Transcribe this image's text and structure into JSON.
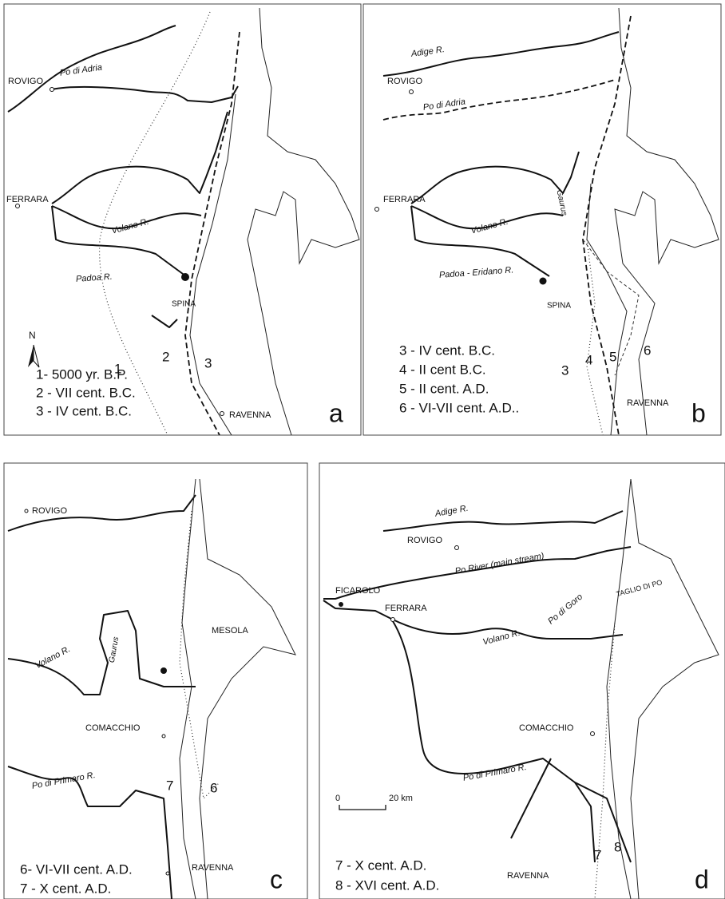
{
  "panels": [
    {
      "letter": "a",
      "labels": [
        "ROVIGO",
        "Po di Adria",
        "FERRARA",
        "Volano R.",
        "Padoa R.",
        "SPINA",
        "N",
        "1",
        "2",
        "3",
        "RAVENNA"
      ],
      "legend": [
        "1- 5000 yr. B.P.",
        "2 - VII cent. B.C.",
        "3 - IV cent. B.C."
      ]
    },
    {
      "letter": "b",
      "labels": [
        "Adige R.",
        "ROVIGO",
        "Po di Adria",
        "FERRARA",
        "Gaurus",
        "Volano R.",
        "Padoa - Eridano R.",
        "SPINA",
        "3",
        "4",
        "5",
        "6",
        "RAVENNA"
      ],
      "legend": [
        "3 - IV cent. B.C.",
        "4 - II cent B.C.",
        "5 - II cent. A.D.",
        "6 - VI-VII cent. A.D.."
      ]
    },
    {
      "letter": "c",
      "labels": [
        "ROVIGO",
        "MESOLA",
        "Gaurus",
        "Volano R.",
        "COMACCHIO",
        "Po di Primaro R.",
        "7",
        "6",
        "RAVENNA"
      ],
      "legend": [
        "6- VI-VII cent. A.D.",
        "7 - X cent. A.D."
      ]
    },
    {
      "letter": "d",
      "labels": [
        "Adige R.",
        "ROVIGO",
        "Po River (main stream)",
        "TAGLIO DI PO",
        "FICAROLO",
        "Po di Goro",
        "FERRARA",
        "Volano R.",
        "COMACCHIO",
        "Po di Primaro R.",
        "0",
        "20 km",
        "7",
        "8",
        "RAVENNA"
      ],
      "legend": [
        "7 - X cent. A.D.",
        "8 - XVI cent. A.D."
      ]
    }
  ]
}
